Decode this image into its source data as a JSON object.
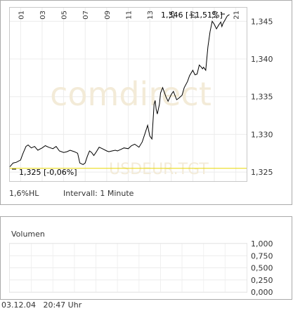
{
  "chart_data": [
    {
      "type": "line",
      "watermark": "comdirect",
      "symbol_watermark": "USDEUR.TGT",
      "x_tick_labels": [
        "01",
        "03",
        "05",
        "07",
        "09",
        "11",
        "13",
        "15",
        "17",
        "19",
        "21"
      ],
      "y_ticks": [
        1.325,
        1.33,
        1.335,
        1.34,
        1.345
      ],
      "y_tick_labels": [
        "1,325",
        "1,330",
        "1,335",
        "1,340",
        "1,345"
      ],
      "ylim": [
        1.3238,
        1.3468
      ],
      "x_range": [
        0,
        22
      ],
      "grid": true,
      "reference_line": {
        "value": 1.3255,
        "color": "#e8d800"
      },
      "annotation_low": "1,325 [-0,06%]",
      "annotation_high": "1,346 [+1,51%]",
      "footer_left": "1,6%HL",
      "footer_interval": "Intervall: 1 Minute",
      "series": [
        {
          "color": "#000000",
          "x": [
            0.0,
            0.3,
            0.6,
            1.0,
            1.2,
            1.5,
            1.7,
            2.0,
            2.3,
            2.6,
            3.0,
            3.3,
            3.6,
            4.0,
            4.3,
            4.6,
            5.0,
            5.3,
            5.6,
            6.0,
            6.3,
            6.5,
            6.8,
            7.0,
            7.2,
            7.4,
            7.6,
            7.8,
            8.0,
            8.3,
            8.6,
            9.0,
            9.2,
            9.5,
            9.8,
            10.0,
            10.3,
            10.6,
            11.0,
            11.3,
            11.6,
            12.0,
            12.3,
            12.6,
            12.8,
            13.0,
            13.2,
            13.4,
            13.5,
            13.6,
            13.7,
            13.9,
            14.0,
            14.2,
            14.5,
            14.7,
            15.0,
            15.2,
            15.5,
            15.7,
            16.0,
            16.2,
            16.5,
            16.7,
            17.0,
            17.2,
            17.4,
            17.6,
            17.8,
            17.9,
            18.0,
            18.2,
            18.4,
            18.6,
            18.8,
            19.0,
            19.2,
            19.4,
            19.6,
            19.7,
            19.8,
            20.0,
            20.2,
            20.4
          ],
          "values": [
            1.3257,
            1.3262,
            1.3263,
            1.3266,
            1.3274,
            1.3284,
            1.3286,
            1.3282,
            1.3284,
            1.3279,
            1.3282,
            1.3285,
            1.3283,
            1.3281,
            1.3284,
            1.3278,
            1.3276,
            1.3277,
            1.3279,
            1.3277,
            1.3275,
            1.3262,
            1.326,
            1.3262,
            1.3271,
            1.3278,
            1.3276,
            1.3272,
            1.3276,
            1.3283,
            1.3281,
            1.3278,
            1.3277,
            1.3278,
            1.3279,
            1.3278,
            1.328,
            1.3282,
            1.3281,
            1.3285,
            1.3287,
            1.3283,
            1.329,
            1.3303,
            1.3312,
            1.3298,
            1.3294,
            1.334,
            1.3345,
            1.3333,
            1.3327,
            1.334,
            1.3355,
            1.3362,
            1.335,
            1.3344,
            1.3353,
            1.3357,
            1.3346,
            1.3348,
            1.3352,
            1.3362,
            1.337,
            1.3378,
            1.3385,
            1.3379,
            1.338,
            1.3392,
            1.3389,
            1.3387,
            1.3389,
            1.3385,
            1.3416,
            1.3436,
            1.345,
            1.3446,
            1.344,
            1.3445,
            1.3449,
            1.3443,
            1.3447,
            1.3452,
            1.3457,
            1.3459
          ]
        }
      ]
    },
    {
      "type": "bar",
      "title": "Volumen",
      "y_ticks": [
        0,
        0.25,
        0.5,
        0.75,
        1.0
      ],
      "y_tick_labels": [
        "0,000",
        "0,250",
        "0,500",
        "0,750",
        "1,000"
      ],
      "ylim": [
        0,
        1
      ],
      "grid": true,
      "values": []
    }
  ],
  "footer": {
    "date": "03.12.04",
    "time": "20:47 Uhr"
  }
}
